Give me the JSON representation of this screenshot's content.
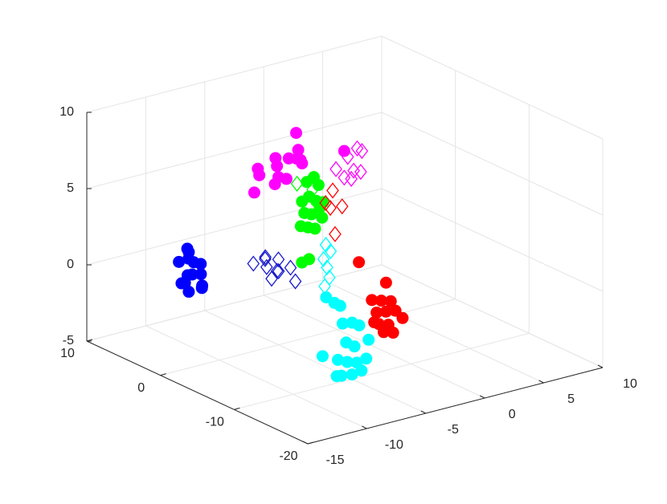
{
  "chart_data": {
    "type": "scatter3",
    "xlim": [
      -15,
      10
    ],
    "xticks": [
      -15,
      -10,
      -5,
      0,
      5,
      10
    ],
    "ylim": [
      -20,
      10
    ],
    "yticks": [
      -20,
      -10,
      0,
      10
    ],
    "zlim": [
      -5,
      10
    ],
    "zticks": [
      -5,
      0,
      5,
      10
    ],
    "grid": true,
    "series": [
      {
        "color": "#0000ff",
        "marker": "o",
        "x": [
          -12.6,
          -12.1,
          -12.8,
          -12.3,
          -11.9,
          -12.5,
          -12.2,
          -12.7,
          -12.0,
          -12.4,
          -12.9,
          -12.3,
          -11.8,
          -12.6
        ],
        "y": [
          0,
          1,
          -1,
          0.5,
          -0.5,
          1.5,
          -1,
          0,
          0.5,
          -1.5,
          0.5,
          1,
          -0.5,
          0
        ],
        "z": [
          2.6,
          2.5,
          2.2,
          2.0,
          1.8,
          1.6,
          1.3,
          1.1,
          0.9,
          0.7,
          0.5,
          0.3,
          0.2,
          0.0
        ]
      },
      {
        "color": "#1a1acc",
        "marker": "d",
        "x": [
          -6.5,
          -6.0,
          -5.5,
          -5.0,
          -4.6,
          -6.2,
          -5.3,
          -4.8,
          -5.8,
          -4.5
        ],
        "y": [
          1,
          0,
          1,
          0,
          -1,
          -1,
          -0.5,
          0.5,
          0.5,
          -1.5
        ],
        "z": [
          0.4,
          0.3,
          0.5,
          0.6,
          0.2,
          -0.2,
          0.0,
          -0.3,
          0.8,
          -0.6
        ]
      },
      {
        "color": "#ff00ff",
        "marker": "o",
        "x": [
          -3.5,
          -3.0,
          -2.5,
          -2.0,
          -1.5,
          -1.0,
          -0.5,
          0.0,
          0.3,
          -2.8,
          -1.2,
          -0.2,
          -3.3,
          -1.0,
          3.7
        ],
        "y": [
          5,
          6,
          4,
          5,
          6,
          5,
          4,
          5,
          6,
          4,
          5,
          5,
          6,
          4,
          5
        ],
        "z": [
          4.7,
          4.8,
          4.6,
          5.0,
          5.2,
          5.3,
          5.1,
          5.0,
          4.8,
          4.2,
          4.0,
          5.7,
          3.3,
          7.2,
          4.85
        ]
      },
      {
        "color": "#ff00ff",
        "marker": "d",
        "x": [
          3.0,
          4.8,
          5.1,
          4.5,
          3.7,
          4.3,
          5.2,
          4.0
        ],
        "y": [
          5,
          5,
          5,
          5,
          5,
          5,
          5,
          5
        ],
        "z": [
          3.8,
          4.8,
          3.2,
          3.4,
          3.1,
          2.9,
          4.55,
          4.4
        ]
      },
      {
        "color": "#00ff00",
        "marker": "o",
        "x": [
          -2.6,
          -2.0,
          -1.6,
          -3.0,
          -2.4,
          -1.8,
          -1.2,
          -2.8,
          -2.2,
          -1.5,
          -3.1,
          -2.5,
          -1.9,
          -1.3,
          -3.0,
          -2.4
        ],
        "y": [
          0,
          0,
          0,
          0,
          0,
          0,
          0,
          0,
          0,
          0,
          0,
          0,
          0,
          0,
          0,
          0
        ],
        "z": [
          5.2,
          5.4,
          4.8,
          4.0,
          4.2,
          3.8,
          3.6,
          3.2,
          3.0,
          3.3,
          2.4,
          2.2,
          2.0,
          2.6,
          0.0,
          0.1
        ]
      },
      {
        "color": "#00ff00",
        "marker": "d",
        "x": [
          -2.8,
          -2.1
        ],
        "y": [
          1,
          0
        ],
        "z": [
          4.9,
          4.6
        ]
      },
      {
        "color": "#ff0000",
        "marker": "d",
        "x": [
          -0.4,
          -0.6,
          0.4,
          -0.2,
          -1.0
        ],
        "y": [
          0,
          0,
          0,
          0,
          0
        ],
        "z": [
          4.2,
          3.1,
          3.0,
          1.3,
          3.5
        ]
      },
      {
        "color": "#ff0000",
        "marker": "o",
        "x": [
          -1.3,
          1.0,
          -0.2,
          0.6,
          1.4,
          0.2,
          1.0,
          1.8,
          0.4,
          1.2,
          2.4,
          0.8,
          1.6,
          0.0
        ],
        "y": [
          -5,
          -5,
          -5,
          -5,
          -5,
          -5,
          -5,
          -5,
          -5,
          -5,
          -5,
          -5,
          -5,
          -5
        ],
        "z": [
          0.8,
          -1.0,
          -1.9,
          -2.1,
          -2.3,
          -2.8,
          -2.9,
          -3.0,
          -3.6,
          -3.8,
          -3.6,
          -4.2,
          -4.4,
          -3.4
        ]
      },
      {
        "color": "#00ffff",
        "marker": "d",
        "x": [
          -4.1,
          -3.7,
          -4.3,
          -4.0,
          -3.8,
          -4.2
        ],
        "y": [
          -5,
          -5,
          -5,
          -5,
          -5,
          -5
        ],
        "z": [
          2.5,
          2.0,
          1.6,
          1.0,
          0.3,
          -0.2
        ]
      },
      {
        "color": "#00ffff",
        "marker": "o",
        "x": [
          -7.2,
          -6.5,
          -6.0,
          -5.8,
          -5.0,
          -4.4,
          -7.5,
          -5.5,
          -4.8,
          -3.6,
          -6.2,
          -5.4,
          -4.6,
          -3.8,
          -5.9,
          -5.0,
          -4.2,
          -6.3
        ],
        "y": [
          -10,
          -10,
          -10,
          -10,
          -10,
          -10,
          -10,
          -10,
          -10,
          -10,
          -10,
          -10,
          -10,
          -10,
          -10,
          -10,
          -10,
          -10
        ],
        "z": [
          0.8,
          0.3,
          0.0,
          -1.2,
          -1.3,
          -1.6,
          -3.0,
          -2.5,
          -2.9,
          -2.7,
          -3.5,
          -3.8,
          -4.0,
          -3.9,
          -4.6,
          -4.7,
          -4.6,
          -4.55
        ]
      }
    ]
  }
}
